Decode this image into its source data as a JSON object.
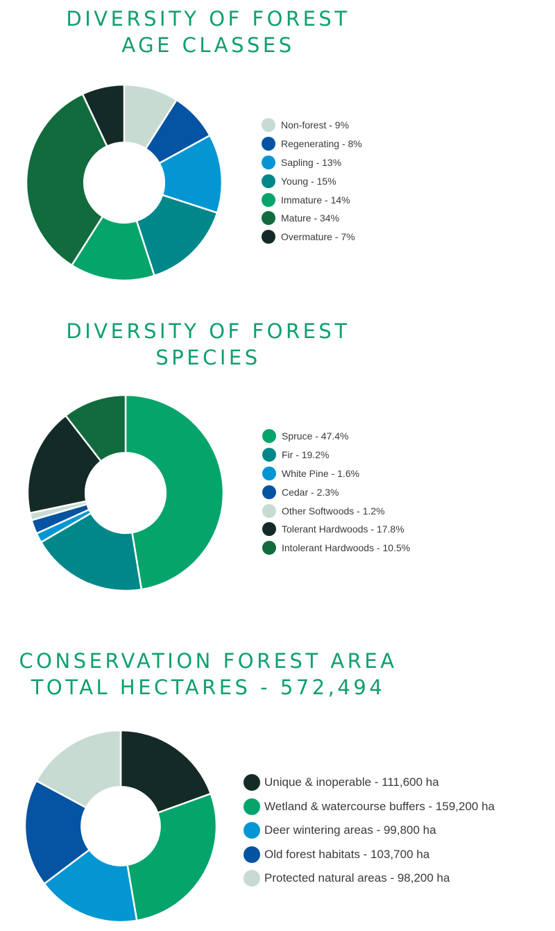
{
  "chart_data": [
    {
      "type": "pie",
      "title_lines": [
        "DIVERSITY OF FOREST",
        "AGE CLASSES"
      ],
      "categories": [
        "Non-forest",
        "Regenerating",
        "Sapling",
        "Young",
        "Immature",
        "Mature",
        "Overmature"
      ],
      "values": [
        9,
        8,
        13,
        15,
        14,
        34,
        7
      ],
      "unit": "%",
      "legend_labels": [
        "Non-forest - 9%",
        "Regenerating - 8%",
        "Sapling - 13%",
        "Young - 15%",
        "Immature - 14%",
        "Mature - 34%",
        "Overmature - 7%"
      ],
      "colors": [
        "#c8dbd3",
        "#0553a3",
        "#0496d3",
        "#00878a",
        "#05a46b",
        "#116b3c",
        "#142a26"
      ],
      "legend_position": "right"
    },
    {
      "type": "pie",
      "title_lines": [
        "DIVERSITY OF FOREST",
        "SPECIES"
      ],
      "categories": [
        "Spruce",
        "Fir",
        "White Pine",
        "Cedar",
        "Other Softwoods",
        "Tolerant Hardwoods",
        "Intolerant Hardwoods"
      ],
      "values": [
        47.4,
        19.2,
        1.6,
        2.3,
        1.2,
        17.8,
        10.5
      ],
      "unit": "%",
      "legend_labels": [
        "Spruce - 47.4%",
        "Fir - 19.2%",
        "White Pine - 1.6%",
        "Cedar - 2.3%",
        "Other Softwoods - 1.2%",
        "Tolerant Hardwoods - 17.8%",
        "Intolerant Hardwoods - 10.5%"
      ],
      "colors": [
        "#05a46b",
        "#00878a",
        "#0496d3",
        "#0553a3",
        "#c8dbd3",
        "#142a26",
        "#116b3c"
      ],
      "legend_position": "right"
    },
    {
      "type": "pie",
      "title_lines": [
        "CONSERVATION FOREST AREA",
        "TOTAL HECTARES - 572,494"
      ],
      "categories": [
        "Unique & inoperable",
        "Wetland & watercourse buffers",
        "Deer wintering areas",
        "Old forest habitats",
        "Protected natural areas"
      ],
      "values": [
        111600,
        159200,
        99800,
        103700,
        98200
      ],
      "unit": "ha",
      "legend_labels": [
        "Unique & inoperable - 111,600 ha",
        "Wetland & watercourse buffers - 159,200 ha",
        "Deer wintering areas - 99,800 ha",
        "Old forest habitats - 103,700 ha",
        "Protected natural areas - 98,200 ha"
      ],
      "colors": [
        "#142a26",
        "#05a46b",
        "#0496d3",
        "#0553a3",
        "#c8dbd3"
      ],
      "legend_position": "right"
    }
  ]
}
